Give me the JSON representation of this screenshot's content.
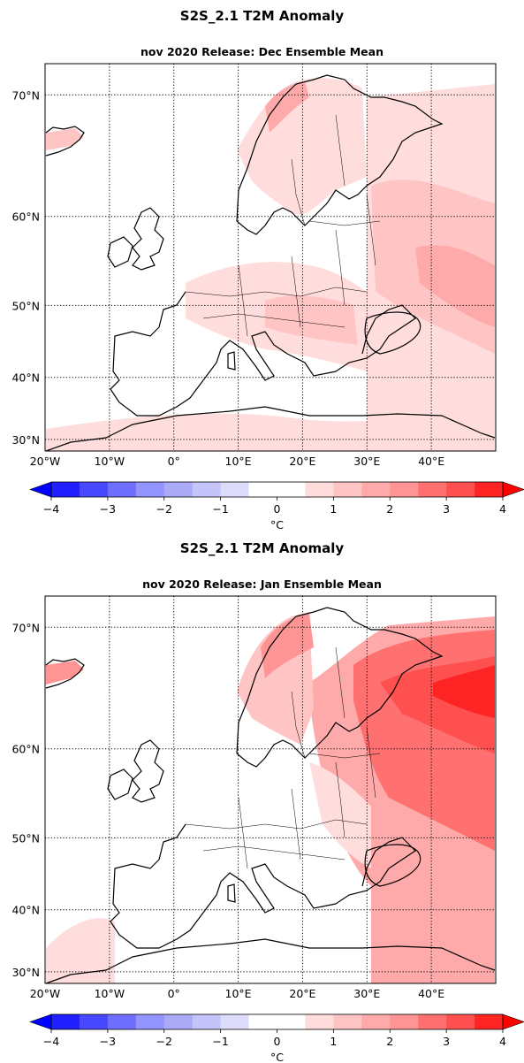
{
  "figure_title": "S2S_2.1 T2M Anomaly",
  "panels": [
    {
      "id": "dec",
      "subtitle": "nov 2020 Release: Dec Ensemble Mean",
      "month": "Dec"
    },
    {
      "id": "jan",
      "subtitle": "nov 2020 Release: Jan Ensemble Mean",
      "month": "Jan"
    }
  ],
  "map": {
    "region": "Europe",
    "lon_range": [
      -20,
      50
    ],
    "lat_range": [
      28,
      72
    ],
    "lat_ticks": [
      "70°N",
      "60°N",
      "50°N",
      "40°N",
      "30°N"
    ],
    "lat_values": [
      70,
      60,
      50,
      40,
      30
    ],
    "lon_ticks": [
      "20°W",
      "10°W",
      "0°",
      "10°E",
      "20°E",
      "30°E",
      "40°E"
    ],
    "lon_values": [
      -20,
      -10,
      0,
      10,
      20,
      30,
      40
    ],
    "gridlines": "dotted"
  },
  "colorbar": {
    "ticks": [
      "−4",
      "−3",
      "−2",
      "−1",
      "0",
      "1",
      "2",
      "3",
      "4"
    ],
    "tick_values": [
      -4,
      -3,
      -2,
      -1,
      0,
      1,
      2,
      3,
      4
    ],
    "levels": [
      -4,
      -3.5,
      -3,
      -2.5,
      -2,
      -1.5,
      -1,
      -0.5,
      0.5,
      1,
      1.5,
      2,
      2.5,
      3,
      3.5,
      4
    ],
    "colors": [
      "#2020ff",
      "#4848ff",
      "#6e6eff",
      "#9494ff",
      "#aaaaf6",
      "#c4c4fa",
      "#ddddfb",
      "#ffffff",
      "#ffdddd",
      "#ffc4c4",
      "#ffaaaa",
      "#ff9494",
      "#ff7070",
      "#ff5050",
      "#ff2424"
    ],
    "extend": "both",
    "unit": "°C",
    "under_color": "#0000ff",
    "over_color": "#ff0000"
  },
  "colors": {
    "land_outline": "#000000",
    "light_anomaly": "#ffdddd",
    "moderate_anomaly": "#ffaaaa",
    "strong_anomaly": "#ff5050",
    "very_strong_anomaly": "#ff2424"
  }
}
